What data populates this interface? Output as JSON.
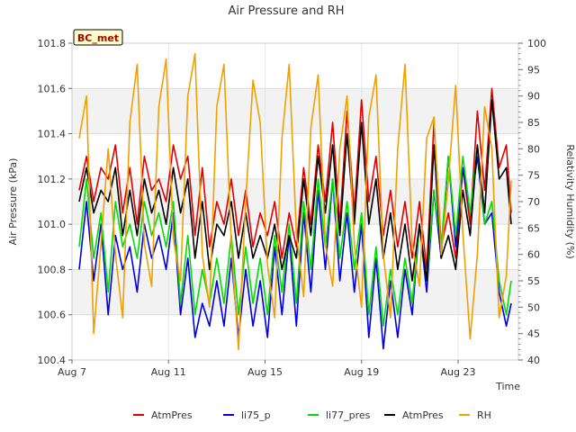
{
  "chart_data": {
    "type": "line",
    "title": "Air Pressure and RH",
    "badge": "BC_met",
    "xlabel": "Time",
    "ylabel_left": "Air Pressure (kPa)",
    "ylabel_right": "Relativity Humidity (%)",
    "x_range_days": [
      7,
      25.5
    ],
    "x_ticks": [
      {
        "day": 7,
        "label": "Aug 7"
      },
      {
        "day": 11,
        "label": "Aug 11"
      },
      {
        "day": 15,
        "label": "Aug 15"
      },
      {
        "day": 19,
        "label": "Aug 19"
      },
      {
        "day": 23,
        "label": "Aug 23"
      }
    ],
    "y_left_range": [
      100.4,
      101.8
    ],
    "y_left_ticks": [
      "100.4",
      "100.6",
      "100.8",
      "101.0",
      "101.2",
      "101.4",
      "101.6",
      "101.8"
    ],
    "y_right_range": [
      40,
      100
    ],
    "y_right_ticks": [
      "40",
      "45",
      "50",
      "55",
      "60",
      "65",
      "70",
      "75",
      "80",
      "85",
      "90",
      "95",
      "100"
    ],
    "background_bands": "alternating grey bands every 0.2 kPa",
    "legend_position": "bottom",
    "series": [
      {
        "name": "AtmPres",
        "color": "#e00000",
        "axis": "left",
        "x": [
          7.3,
          7.6,
          7.9,
          8.2,
          8.5,
          8.8,
          9.1,
          9.4,
          9.7,
          10.0,
          10.3,
          10.6,
          10.9,
          11.2,
          11.5,
          11.8,
          12.1,
          12.4,
          12.7,
          13.0,
          13.3,
          13.6,
          13.9,
          14.2,
          14.5,
          14.8,
          15.1,
          15.4,
          15.7,
          16.0,
          16.3,
          16.6,
          16.9,
          17.2,
          17.5,
          17.8,
          18.1,
          18.4,
          18.7,
          19.0,
          19.3,
          19.6,
          19.9,
          20.2,
          20.5,
          20.8,
          21.1,
          21.4,
          21.7,
          22.0,
          22.3,
          22.6,
          22.9,
          23.2,
          23.5,
          23.8,
          24.1,
          24.4,
          24.7,
          25.0,
          25.2
        ],
        "y": [
          101.15,
          101.3,
          101.1,
          101.25,
          101.2,
          101.35,
          101.05,
          101.25,
          101.0,
          101.3,
          101.15,
          101.2,
          101.1,
          101.35,
          101.2,
          101.3,
          100.95,
          101.25,
          100.9,
          101.1,
          101.0,
          101.2,
          100.95,
          101.15,
          100.9,
          101.05,
          100.95,
          101.1,
          100.85,
          101.05,
          100.9,
          101.25,
          101.0,
          101.35,
          101.1,
          101.45,
          101.0,
          101.5,
          101.05,
          101.55,
          101.1,
          101.3,
          100.95,
          101.15,
          100.9,
          101.1,
          100.85,
          101.1,
          100.8,
          101.45,
          100.9,
          101.05,
          100.85,
          101.25,
          101.0,
          101.5,
          101.15,
          101.6,
          101.25,
          101.35,
          101.05
        ]
      },
      {
        "name": "li75_p",
        "color": "#0000e0",
        "axis": "left",
        "x": [
          7.3,
          7.6,
          7.9,
          8.2,
          8.5,
          8.8,
          9.1,
          9.4,
          9.7,
          10.0,
          10.3,
          10.6,
          10.9,
          11.2,
          11.5,
          11.8,
          12.1,
          12.4,
          12.7,
          13.0,
          13.3,
          13.6,
          13.9,
          14.2,
          14.5,
          14.8,
          15.1,
          15.4,
          15.7,
          16.0,
          16.3,
          16.6,
          16.9,
          17.2,
          17.5,
          17.8,
          18.1,
          18.4,
          18.7,
          19.0,
          19.3,
          19.6,
          19.9,
          20.2,
          20.5,
          20.8,
          21.1,
          21.4,
          21.7,
          22.0,
          22.3,
          22.6,
          22.9,
          23.2,
          23.5,
          23.8,
          24.1,
          24.4,
          24.7,
          25.0,
          25.2
        ],
        "y": [
          100.8,
          101.1,
          100.75,
          101.0,
          100.6,
          100.95,
          100.8,
          100.9,
          100.7,
          101.0,
          100.85,
          100.95,
          100.8,
          101.05,
          100.6,
          100.85,
          100.5,
          100.65,
          100.55,
          100.75,
          100.55,
          100.85,
          100.5,
          100.8,
          100.55,
          100.75,
          100.5,
          100.9,
          100.6,
          100.95,
          100.55,
          101.05,
          100.7,
          101.15,
          100.8,
          101.2,
          100.75,
          101.05,
          100.7,
          101.0,
          100.5,
          100.85,
          100.45,
          100.75,
          100.5,
          100.8,
          100.6,
          101.0,
          100.7,
          101.15,
          100.85,
          101.3,
          100.9,
          101.25,
          101.05,
          101.3,
          101.0,
          101.05,
          100.7,
          100.55,
          100.65
        ]
      },
      {
        "name": "li77_pres",
        "color": "#00dd00",
        "axis": "left",
        "x": [
          7.3,
          7.6,
          7.9,
          8.2,
          8.5,
          8.8,
          9.1,
          9.4,
          9.7,
          10.0,
          10.3,
          10.6,
          10.9,
          11.2,
          11.5,
          11.8,
          12.1,
          12.4,
          12.7,
          13.0,
          13.3,
          13.6,
          13.9,
          14.2,
          14.5,
          14.8,
          15.1,
          15.4,
          15.7,
          16.0,
          16.3,
          16.6,
          16.9,
          17.2,
          17.5,
          17.8,
          18.1,
          18.4,
          18.7,
          19.0,
          19.3,
          19.6,
          19.9,
          20.2,
          20.5,
          20.8,
          21.1,
          21.4,
          21.7,
          22.0,
          22.3,
          22.6,
          22.9,
          23.2,
          23.5,
          23.8,
          24.1,
          24.4,
          24.7,
          25.0,
          25.2
        ],
        "y": [
          100.9,
          101.2,
          100.85,
          101.05,
          100.7,
          101.1,
          100.9,
          101.0,
          100.85,
          101.1,
          100.95,
          101.05,
          100.9,
          101.1,
          100.65,
          100.95,
          100.6,
          100.8,
          100.65,
          100.85,
          100.65,
          100.95,
          100.6,
          100.9,
          100.65,
          100.85,
          100.6,
          100.95,
          100.7,
          101.0,
          100.65,
          101.1,
          100.8,
          101.2,
          100.9,
          101.2,
          100.85,
          101.1,
          100.8,
          101.05,
          100.6,
          100.9,
          100.55,
          100.8,
          100.6,
          100.85,
          100.65,
          101.0,
          100.75,
          101.15,
          100.9,
          101.3,
          100.95,
          101.3,
          101.05,
          101.35,
          101.0,
          101.1,
          100.75,
          100.6,
          100.75
        ]
      },
      {
        "name": "AtmPres",
        "color": "#000000",
        "axis": "left",
        "x": [
          7.3,
          7.6,
          7.9,
          8.2,
          8.5,
          8.8,
          9.1,
          9.4,
          9.7,
          10.0,
          10.3,
          10.6,
          10.9,
          11.2,
          11.5,
          11.8,
          12.1,
          12.4,
          12.7,
          13.0,
          13.3,
          13.6,
          13.9,
          14.2,
          14.5,
          14.8,
          15.1,
          15.4,
          15.7,
          16.0,
          16.3,
          16.6,
          16.9,
          17.2,
          17.5,
          17.8,
          18.1,
          18.4,
          18.7,
          19.0,
          19.3,
          19.6,
          19.9,
          20.2,
          20.5,
          20.8,
          21.1,
          21.4,
          21.7,
          22.0,
          22.3,
          22.6,
          22.9,
          23.2,
          23.5,
          23.8,
          24.1,
          24.4,
          24.7,
          25.0,
          25.2
        ],
        "y": [
          101.1,
          101.25,
          101.05,
          101.15,
          101.1,
          101.25,
          100.95,
          101.15,
          100.95,
          101.2,
          101.05,
          101.15,
          101.0,
          101.25,
          101.05,
          101.2,
          100.85,
          101.1,
          100.8,
          101.0,
          100.95,
          101.1,
          100.85,
          101.05,
          100.85,
          100.95,
          100.85,
          101.0,
          100.8,
          100.95,
          100.85,
          101.2,
          100.95,
          101.3,
          101.05,
          101.35,
          100.95,
          101.4,
          101.0,
          101.45,
          101.0,
          101.2,
          100.85,
          101.05,
          100.8,
          101.0,
          100.75,
          101.0,
          100.75,
          101.35,
          100.85,
          100.95,
          100.8,
          101.15,
          100.95,
          101.35,
          101.05,
          101.55,
          101.2,
          101.25,
          101.0
        ]
      },
      {
        "name": "RH",
        "color": "#f0a000",
        "axis": "right",
        "x": [
          7.3,
          7.6,
          7.9,
          8.2,
          8.5,
          8.8,
          9.1,
          9.4,
          9.7,
          10.0,
          10.3,
          10.6,
          10.9,
          11.2,
          11.5,
          11.8,
          12.1,
          12.4,
          12.7,
          13.0,
          13.3,
          13.6,
          13.9,
          14.2,
          14.5,
          14.8,
          15.1,
          15.4,
          15.7,
          16.0,
          16.3,
          16.6,
          16.9,
          17.2,
          17.5,
          17.8,
          18.1,
          18.4,
          18.7,
          19.0,
          19.3,
          19.6,
          19.9,
          20.2,
          20.5,
          20.8,
          21.1,
          21.4,
          21.7,
          22.0,
          22.3,
          22.6,
          22.9,
          23.2,
          23.5,
          23.8,
          24.1,
          24.4,
          24.7,
          25.0,
          25.2
        ],
        "y": [
          82,
          90,
          45,
          62,
          80,
          60,
          48,
          85,
          96,
          62,
          54,
          88,
          97,
          63,
          55,
          90,
          98,
          60,
          50,
          88,
          96,
          62,
          42,
          70,
          93,
          85,
          58,
          48,
          82,
          96,
          64,
          52,
          84,
          94,
          62,
          54,
          80,
          90,
          62,
          50,
          86,
          94,
          60,
          48,
          80,
          96,
          62,
          54,
          82,
          86,
          60,
          74,
          92,
          64,
          44,
          60,
          88,
          80,
          48,
          56,
          74
        ]
      }
    ]
  }
}
